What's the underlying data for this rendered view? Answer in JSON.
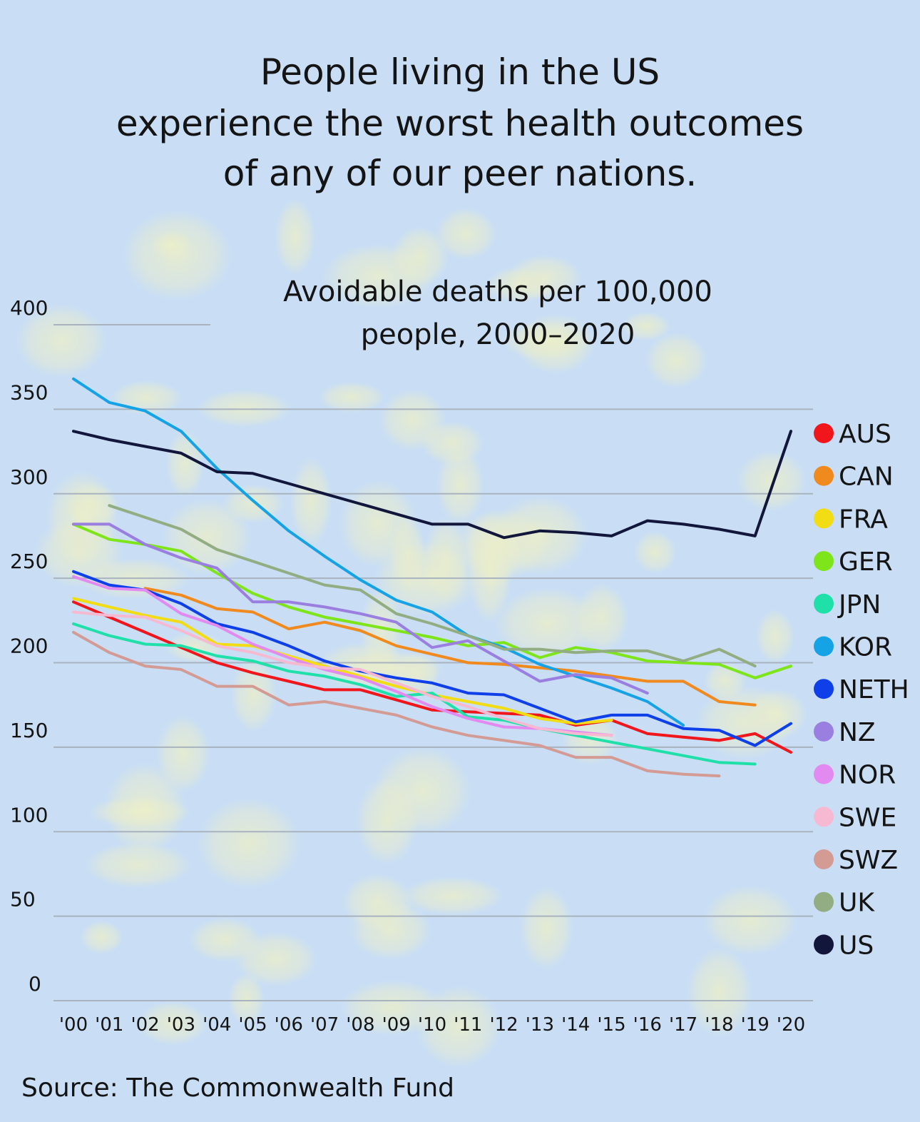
{
  "headline": {
    "line1": "People living in the US",
    "line2": "experience the worst health outcomes",
    "line3": "of any of our peer nations."
  },
  "source": "Source: The Commonwealth Fund",
  "colors": {
    "background": "#c9def5",
    "gridline": "#a9b3bf",
    "text": "#141414"
  },
  "chart_data": {
    "type": "line",
    "title": "Avoidable deaths per 100,000 people, 2000–2020",
    "title_lines": [
      "Avoidable deaths per 100,000",
      "people, 2000–2020"
    ],
    "xlabel": "",
    "ylabel": "",
    "ylim": [
      0,
      400
    ],
    "y_ticks": [
      0,
      50,
      100,
      150,
      200,
      250,
      300,
      350,
      400
    ],
    "grid": true,
    "legend_position": "right",
    "x": [
      2000,
      2001,
      2002,
      2003,
      2004,
      2005,
      2006,
      2007,
      2008,
      2009,
      2010,
      2011,
      2012,
      2013,
      2014,
      2015,
      2016,
      2017,
      2018,
      2019,
      2020
    ],
    "x_tick_labels": [
      "'00",
      "'01",
      "'02",
      "'03",
      "'04",
      "'05",
      "'06",
      "'07",
      "'08",
      "'09",
      "'10",
      "'11",
      "'12",
      "'13",
      "'14",
      "'15",
      "'16",
      "'17",
      "'18",
      "'19",
      "'20"
    ],
    "series": [
      {
        "name": "AUS",
        "color": "#f0161b",
        "values": [
          236,
          227,
          218,
          209,
          200,
          194,
          189,
          184,
          184,
          178,
          172,
          171,
          170,
          169,
          163,
          166,
          158,
          156,
          154,
          158,
          147
        ]
      },
      {
        "name": "CAN",
        "color": "#f08a1e",
        "values": [
          null,
          null,
          244,
          240,
          232,
          230,
          220,
          224,
          219,
          210,
          205,
          200,
          199,
          197,
          195,
          192,
          189,
          189,
          177,
          175,
          null
        ]
      },
      {
        "name": "FRA",
        "color": "#f2dc14",
        "values": [
          238,
          233,
          228,
          224,
          211,
          210,
          204,
          198,
          192,
          186,
          181,
          177,
          173,
          167,
          164,
          166,
          null,
          null,
          null,
          null,
          null
        ]
      },
      {
        "name": "GER",
        "color": "#7ee51a",
        "values": [
          282,
          273,
          270,
          266,
          253,
          241,
          233,
          227,
          223,
          219,
          215,
          210,
          212,
          203,
          209,
          206,
          201,
          200,
          199,
          191,
          198
        ]
      },
      {
        "name": "JPN",
        "color": "#1fe0a8",
        "values": [
          223,
          216,
          211,
          210,
          204,
          201,
          195,
          192,
          187,
          180,
          182,
          168,
          166,
          161,
          157,
          153,
          149,
          145,
          141,
          140,
          null
        ]
      },
      {
        "name": "KOR",
        "color": "#16a3e6",
        "values": [
          368,
          354,
          349,
          337,
          315,
          296,
          278,
          263,
          249,
          237,
          230,
          216,
          209,
          199,
          192,
          185,
          177,
          163,
          null,
          null,
          null
        ]
      },
      {
        "name": "NETH",
        "color": "#0f3fe8",
        "values": [
          254,
          246,
          243,
          235,
          223,
          218,
          210,
          201,
          195,
          191,
          188,
          182,
          181,
          173,
          165,
          169,
          169,
          161,
          160,
          151,
          164
        ]
      },
      {
        "name": "NZ",
        "color": "#9a7ee0",
        "values": [
          282,
          282,
          270,
          262,
          256,
          236,
          236,
          233,
          229,
          224,
          209,
          213,
          201,
          189,
          193,
          191,
          182,
          null,
          null,
          null,
          null
        ]
      },
      {
        "name": "NOR",
        "color": "#e38af0",
        "values": [
          251,
          244,
          243,
          229,
          222,
          211,
          203,
          196,
          191,
          183,
          174,
          167,
          162,
          161,
          159,
          157,
          null,
          null,
          null,
          null,
          null
        ]
      },
      {
        "name": "SWE",
        "color": "#f7b8d2",
        "values": [
          230,
          228,
          227,
          219,
          210,
          206,
          200,
          197,
          196,
          188,
          180,
          174,
          167,
          161,
          158,
          157,
          null,
          null,
          null,
          null,
          null
        ]
      },
      {
        "name": "SWZ",
        "color": "#d39b94",
        "values": [
          218,
          206,
          198,
          196,
          186,
          186,
          175,
          177,
          173,
          169,
          162,
          157,
          154,
          151,
          144,
          144,
          136,
          134,
          133,
          null,
          null
        ]
      },
      {
        "name": "UK",
        "color": "#93ad82",
        "values": [
          null,
          293,
          286,
          279,
          267,
          260,
          253,
          246,
          243,
          229,
          223,
          216,
          208,
          208,
          206,
          207,
          207,
          201,
          208,
          198,
          null
        ]
      },
      {
        "name": "US",
        "color": "#12163a",
        "values": [
          337,
          332,
          328,
          324,
          313,
          312,
          306,
          300,
          294,
          288,
          282,
          282,
          274,
          278,
          277,
          275,
          284,
          282,
          279,
          275,
          337
        ]
      }
    ]
  }
}
